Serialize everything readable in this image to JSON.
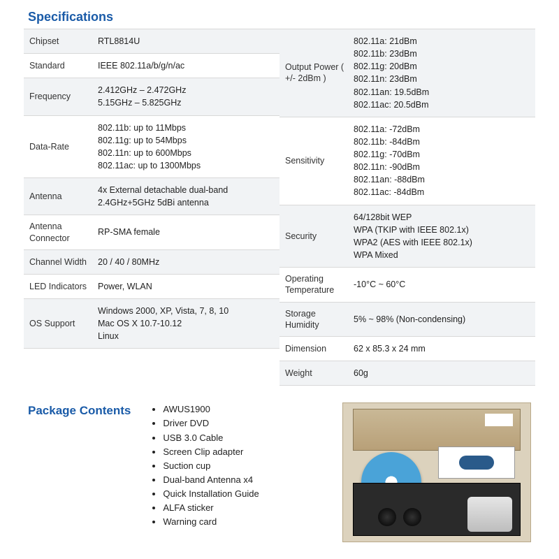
{
  "colors": {
    "heading": "#1a5ba8",
    "row_alt_bg": "#f1f3f5",
    "border": "#d8d8d8",
    "text": "#222222",
    "background": "#ffffff"
  },
  "typography": {
    "heading_fontsize_pt": 14,
    "body_fontsize_pt": 9.5,
    "font_family": "Arial"
  },
  "specifications": {
    "title": "Specifications",
    "left": [
      {
        "label": "Chipset",
        "value": "RTL8814U",
        "alt": true
      },
      {
        "label": "Standard",
        "value": "IEEE 802.11a/b/g/n/ac",
        "alt": false
      },
      {
        "label": "Frequency",
        "value": "2.412GHz – 2.472GHz\n5.15GHz – 5.825GHz",
        "alt": true
      },
      {
        "label": "Data-Rate",
        "value": "802.11b: up to 11Mbps\n802.11g: up to 54Mbps\n802.11n: up to 600Mbps\n802.11ac: up to 1300Mbps",
        "alt": false
      },
      {
        "label": "Antenna",
        "value": "4x External detachable dual-band 2.4GHz+5GHz 5dBi antenna",
        "alt": true
      },
      {
        "label": "Antenna Connector",
        "value": "RP-SMA female",
        "alt": false
      },
      {
        "label": "Channel Width",
        "value": "20 / 40 / 80MHz",
        "alt": true
      },
      {
        "label": "LED Indicators",
        "value": "Power, WLAN",
        "alt": false
      },
      {
        "label": "OS Support",
        "value": "Windows 2000, XP, Vista, 7, 8, 10\nMac OS X 10.7-10.12\nLinux",
        "alt": true
      }
    ],
    "right": [
      {
        "label": "Output Power\n( +/- 2dBm )",
        "value": "802.11a: 21dBm\n802.11b: 23dBm\n802.11g: 20dBm\n802.11n: 23dBm\n802.11an: 19.5dBm\n802.11ac: 20.5dBm",
        "alt": true
      },
      {
        "label": "Sensitivity",
        "value": "802.11a: -72dBm\n802.11b: -84dBm\n802.11g: -70dBm\n802.11n: -90dBm\n802.11an: -88dBm\n802.11ac: -84dBm",
        "alt": false
      },
      {
        "label": "Security",
        "value": "64/128bit WEP\nWPA (TKIP with IEEE 802.1x)\nWPA2 (AES with IEEE 802.1x)\nWPA Mixed",
        "alt": true
      },
      {
        "label": "Operating Temperature",
        "value": "-10°C ~ 60°C",
        "alt": false
      },
      {
        "label": "Storage Humidity",
        "value": "5% ~ 98% (Non-condensing)",
        "alt": true
      },
      {
        "label": "Dimension",
        "value": "62 x 85.3 x 24 mm",
        "alt": false
      },
      {
        "label": "Weight",
        "value": "60g",
        "alt": true
      }
    ]
  },
  "package": {
    "title": "Package Contents",
    "items": [
      "AWUS1900",
      "Driver DVD",
      "USB 3.0 Cable",
      "Screen Clip adapter",
      "Suction cup",
      "Dual-band Antenna x4",
      "Quick Installation Guide",
      "ALFA sticker",
      "Warning card"
    ]
  }
}
